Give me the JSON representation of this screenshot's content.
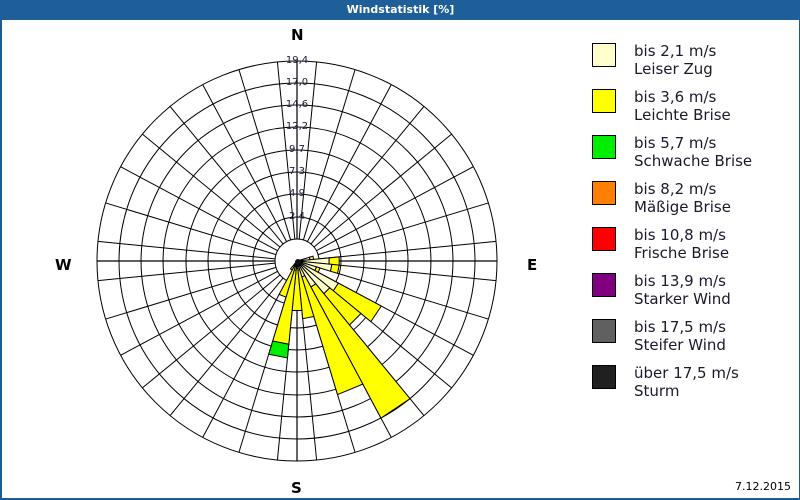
{
  "window": {
    "title": "Windstatistik [%]",
    "date": "7.12.2015"
  },
  "compass": {
    "north": "N",
    "east": "E",
    "south": "S",
    "west": "W"
  },
  "legend": [
    {
      "range": "bis 2,1 m/s",
      "name": "Leiser Zug",
      "color": "#ffffcc"
    },
    {
      "range": "bis 3,6 m/s",
      "name": "Leichte Brise",
      "color": "#ffff00"
    },
    {
      "range": "bis 5,7 m/s",
      "name": "Schwache Brise",
      "color": "#00ee00"
    },
    {
      "range": "bis 8,2 m/s",
      "name": "Mäßige Brise",
      "color": "#ff8000"
    },
    {
      "range": "bis 10,8 m/s",
      "name": "Frische Brise",
      "color": "#ff0000"
    },
    {
      "range": "bis 13,9 m/s",
      "name": "Starker Wind",
      "color": "#800080"
    },
    {
      "range": "bis 17,5 m/s",
      "name": "Steifer Wind",
      "color": "#606060"
    },
    {
      "range": "über 17,5 m/s",
      "name": "Sturm",
      "color": "#202020"
    }
  ],
  "chart_data": {
    "type": "wind_rose",
    "title": "Windstatistik [%]",
    "sectors": 32,
    "sector_width_deg": 11.25,
    "ring_labels": [
      "2,4",
      "4,9",
      "7,3",
      "9,7",
      "12,2",
      "14,6",
      "17,0",
      "19,4"
    ],
    "ring_values": [
      2.4,
      4.9,
      7.3,
      9.7,
      12.2,
      14.6,
      17.0,
      19.4
    ],
    "rlim": [
      0,
      19.4
    ],
    "series_order": [
      "bis 2,1 m/s",
      "bis 3,6 m/s",
      "bis 5,7 m/s"
    ],
    "bars": [
      {
        "direction_deg": 78.75,
        "cumulative": [
          1.2,
          1.6,
          1.6
        ]
      },
      {
        "direction_deg": 90.0,
        "cumulative": [
          3.3,
          4.4,
          4.4
        ]
      },
      {
        "direction_deg": 101.25,
        "cumulative": [
          3.6,
          4.4,
          4.4
        ]
      },
      {
        "direction_deg": 112.5,
        "cumulative": [
          2.0,
          2.4,
          2.4
        ]
      },
      {
        "direction_deg": 123.75,
        "cumulative": [
          4.9,
          10.2,
          10.2
        ]
      },
      {
        "direction_deg": 135.0,
        "cumulative": [
          4.4,
          8.8,
          8.8
        ]
      },
      {
        "direction_deg": 146.25,
        "cumulative": [
          3.0,
          19.2,
          19.2
        ]
      },
      {
        "direction_deg": 157.5,
        "cumulative": [
          1.6,
          15.0,
          15.0
        ]
      },
      {
        "direction_deg": 168.75,
        "cumulative": [
          0.8,
          6.1,
          6.1
        ]
      },
      {
        "direction_deg": 180.0,
        "cumulative": [
          0.6,
          5.2,
          5.2
        ]
      },
      {
        "direction_deg": 191.25,
        "cumulative": [
          0.8,
          8.9,
          10.4
        ]
      },
      {
        "direction_deg": 202.5,
        "cumulative": [
          0.4,
          3.9,
          3.9
        ]
      },
      {
        "direction_deg": 213.75,
        "cumulative": [
          0.2,
          0.9,
          0.9
        ]
      }
    ],
    "legend_position": "right",
    "grid": true
  }
}
